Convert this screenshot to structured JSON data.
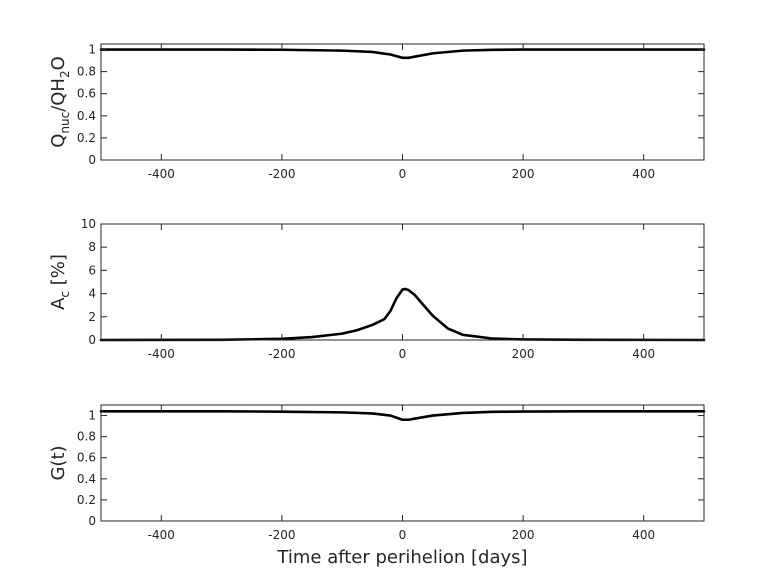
{
  "chart_data": [
    {
      "type": "line",
      "ylabel": {
        "main": "Q",
        "sub1": "nuc",
        "mid": "/QH",
        "sub2": "2",
        "tail": "O"
      },
      "xlim": [
        -500,
        500
      ],
      "ylim": [
        0,
        1.05
      ],
      "xticks": [
        -400,
        -200,
        0,
        200,
        400
      ],
      "xtick_labels": [
        "-400",
        "-200",
        "0",
        "200",
        "400"
      ],
      "yticks": [
        0,
        0.2,
        0.4,
        0.6,
        0.8,
        1
      ],
      "ytick_labels": [
        "0",
        "0.2",
        "0.4",
        "0.6",
        "0.8",
        "1"
      ],
      "show_xtick_labels": true,
      "series": [
        {
          "x": [
            -500,
            -300,
            -200,
            -100,
            -50,
            -20,
            0,
            10,
            20,
            50,
            100,
            150,
            200,
            300,
            500
          ],
          "y": [
            1.0,
            1.0,
            0.998,
            0.99,
            0.978,
            0.955,
            0.925,
            0.925,
            0.935,
            0.965,
            0.99,
            0.997,
            1.0,
            1.0,
            1.0
          ]
        }
      ]
    },
    {
      "type": "line",
      "ylabel": {
        "main": "A",
        "sub1": "c",
        "mid": " [%]",
        "sub2": "",
        "tail": ""
      },
      "xlim": [
        -500,
        500
      ],
      "ylim": [
        0,
        10
      ],
      "xticks": [
        -400,
        -200,
        0,
        200,
        400
      ],
      "xtick_labels": [
        "-400",
        "-200",
        "0",
        "200",
        "400"
      ],
      "yticks": [
        0,
        2,
        4,
        6,
        8,
        10
      ],
      "ytick_labels": [
        "0",
        "2",
        "4",
        "6",
        "8",
        "10"
      ],
      "show_xtick_labels": true,
      "series": [
        {
          "x": [
            -500,
            -300,
            -200,
            -150,
            -100,
            -75,
            -50,
            -30,
            -20,
            -10,
            0,
            5,
            10,
            20,
            30,
            50,
            75,
            100,
            150,
            200,
            300,
            500
          ],
          "y": [
            0.0,
            0.02,
            0.1,
            0.25,
            0.55,
            0.85,
            1.3,
            1.8,
            2.5,
            3.6,
            4.35,
            4.4,
            4.3,
            3.9,
            3.3,
            2.1,
            1.0,
            0.45,
            0.12,
            0.05,
            0.02,
            0.0
          ]
        }
      ]
    },
    {
      "type": "line",
      "ylabel": {
        "main": "G(t)",
        "sub1": "",
        "mid": "",
        "sub2": "",
        "tail": ""
      },
      "xlabel": "Time after perihelion [days]",
      "xlim": [
        -500,
        500
      ],
      "ylim": [
        0,
        1.1
      ],
      "xticks": [
        -400,
        -200,
        0,
        200,
        400
      ],
      "xtick_labels": [
        "-400",
        "-200",
        "0",
        "200",
        "400"
      ],
      "yticks": [
        0,
        0.2,
        0.4,
        0.6,
        0.8,
        1
      ],
      "ytick_labels": [
        "0",
        "0.2",
        "0.4",
        "0.6",
        "0.8",
        "1"
      ],
      "show_xtick_labels": true,
      "series": [
        {
          "x": [
            -500,
            -300,
            -200,
            -100,
            -50,
            -20,
            0,
            10,
            20,
            50,
            100,
            150,
            200,
            300,
            500
          ],
          "y": [
            1.04,
            1.04,
            1.037,
            1.03,
            1.02,
            1.0,
            0.96,
            0.96,
            0.97,
            1.0,
            1.025,
            1.035,
            1.038,
            1.04,
            1.04
          ]
        }
      ]
    }
  ],
  "colors": {
    "line": "#000000",
    "axis": "#262626",
    "background": "#ffffff"
  }
}
